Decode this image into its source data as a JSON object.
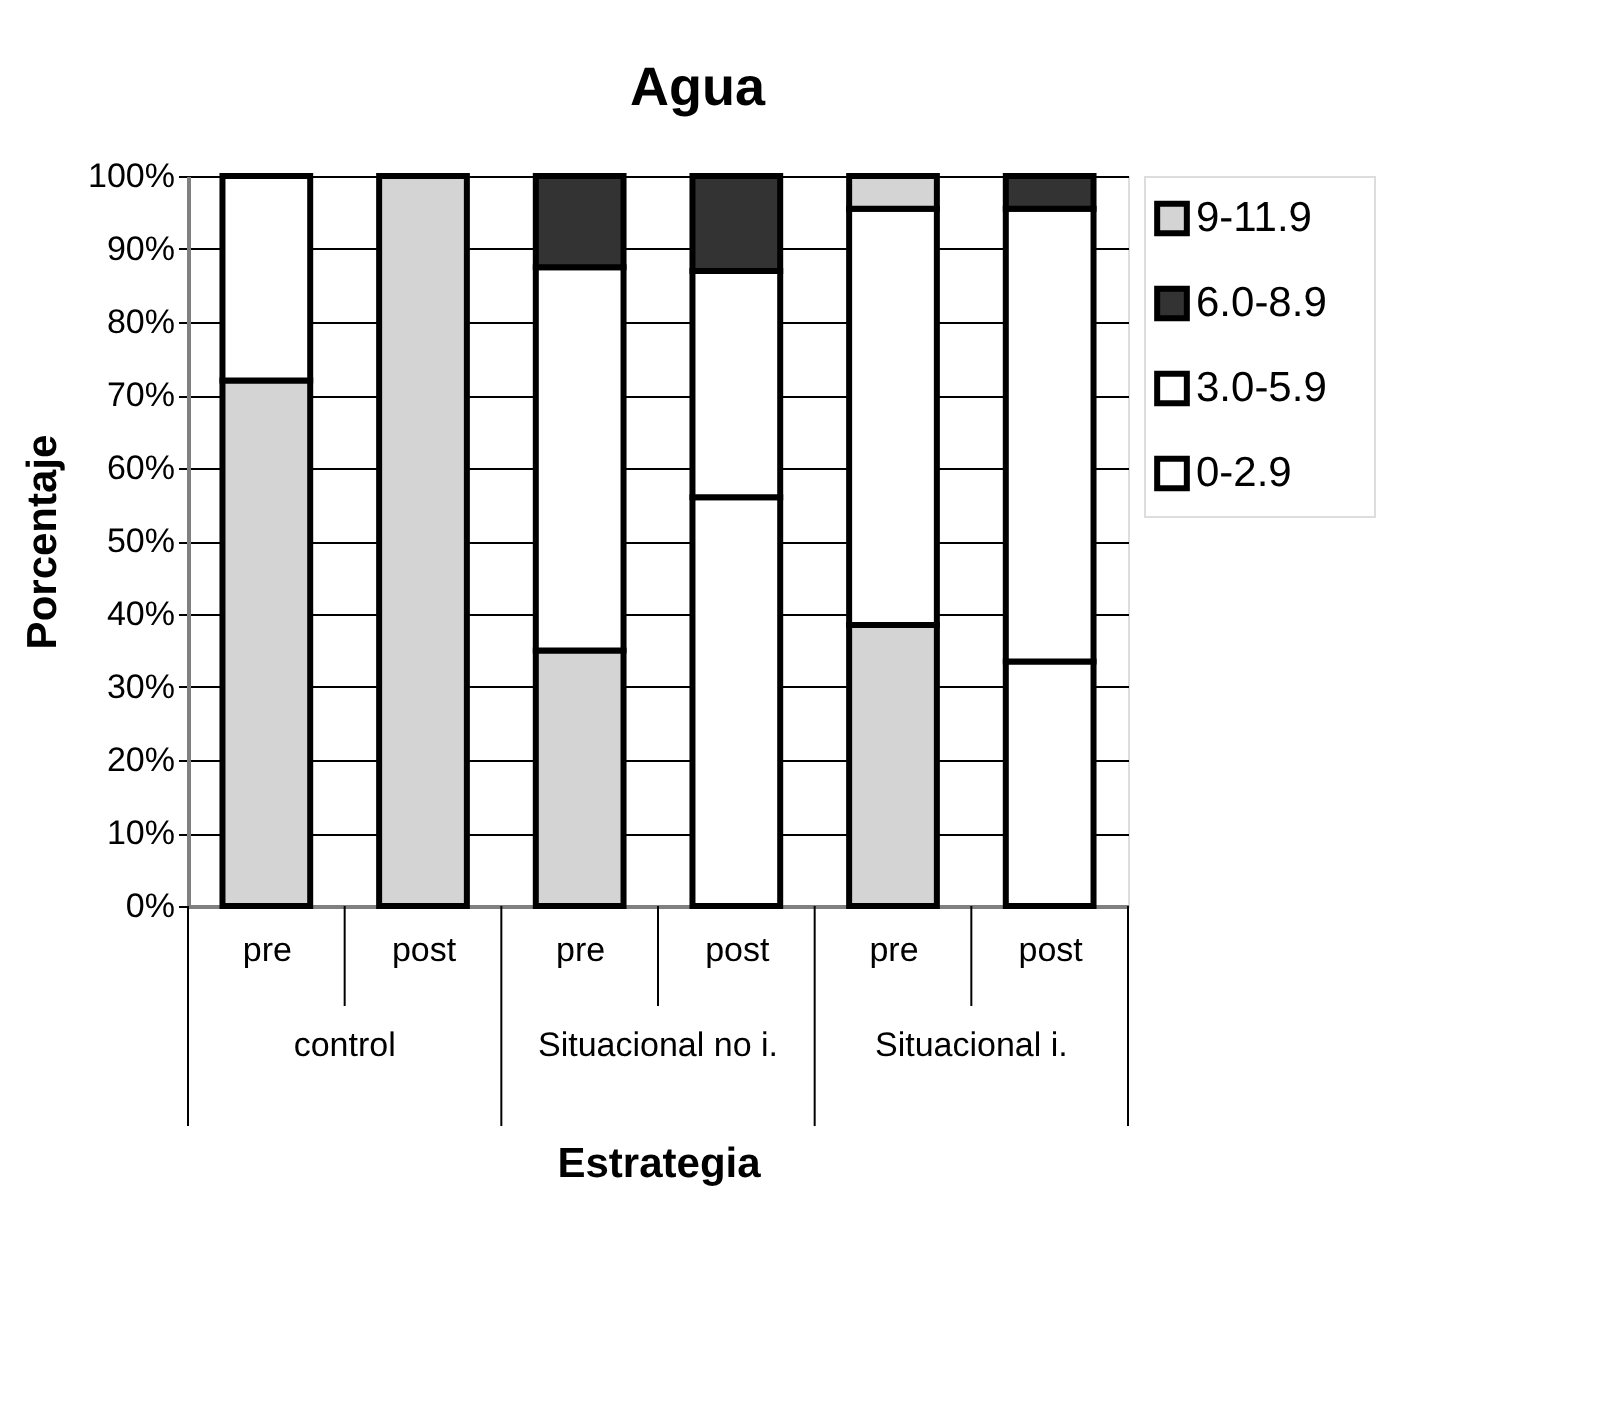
{
  "chart_data": {
    "type": "bar",
    "stacked": true,
    "title": "Agua",
    "xlabel": "Estrategia",
    "ylabel": "Porcentaje",
    "categories": [
      "pre",
      "post",
      "pre",
      "post",
      "pre",
      "post"
    ],
    "annotations": [
      "control",
      "Situacional no i.",
      "Situacional i."
    ],
    "series": [
      {
        "name": "0-2.9",
        "color": "#ffffff",
        "colors": [
          "#d4d4d4",
          "#d4d4d4",
          "#d4d4d4",
          "#ffffff",
          "#d4d4d4",
          "#ffffff"
        ],
        "values": [
          72,
          100,
          35,
          56,
          38.5,
          33.5
        ]
      },
      {
        "name": "3.0-5.9",
        "color": "#ffffff",
        "values": [
          28,
          0,
          52.5,
          31,
          57,
          62
        ]
      },
      {
        "name": "6.0-8.9",
        "color": "#333333",
        "values": [
          0,
          0,
          12.5,
          13,
          0,
          4.5
        ]
      },
      {
        "name": "9-11.9",
        "color": "#d4d4d4",
        "values": [
          0,
          0,
          0,
          0,
          4.5,
          0
        ]
      }
    ],
    "ylim": [
      0,
      100
    ],
    "yticks": [
      {
        "value": 0,
        "label": "0%"
      },
      {
        "value": 10,
        "label": "10%"
      },
      {
        "value": 20,
        "label": "20%"
      },
      {
        "value": 30,
        "label": "30%"
      },
      {
        "value": 40,
        "label": "40%"
      },
      {
        "value": 50,
        "label": "50%"
      },
      {
        "value": 60,
        "label": "60%"
      },
      {
        "value": 70,
        "label": "70%"
      },
      {
        "value": 80,
        "label": "80%"
      },
      {
        "value": 90,
        "label": "90%"
      },
      {
        "value": 100,
        "label": "100%"
      }
    ],
    "grid": "y",
    "legend": "right"
  }
}
